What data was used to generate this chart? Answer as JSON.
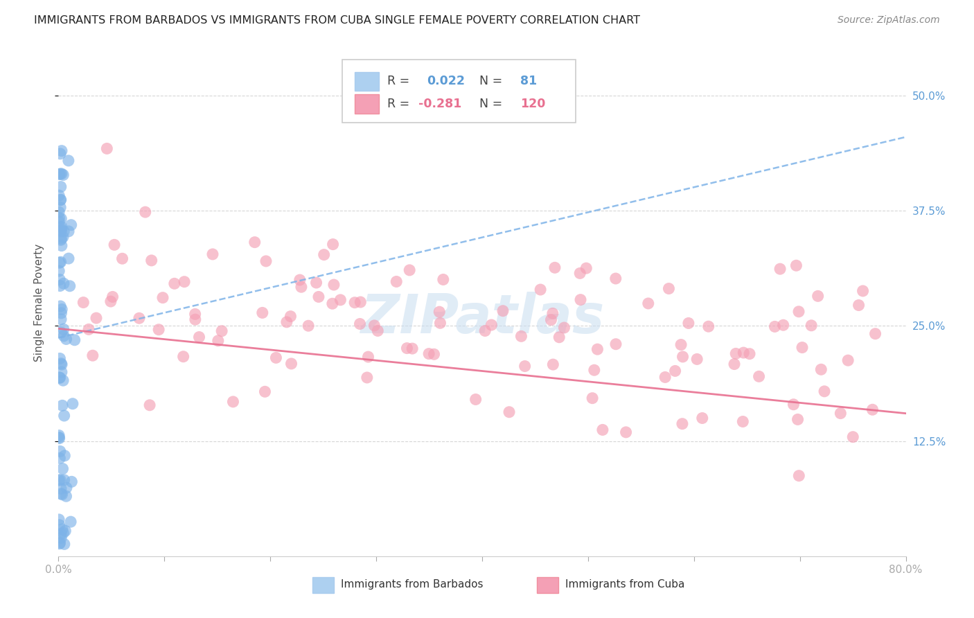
{
  "title": "IMMIGRANTS FROM BARBADOS VS IMMIGRANTS FROM CUBA SINGLE FEMALE POVERTY CORRELATION CHART",
  "source": "Source: ZipAtlas.com",
  "ylabel": "Single Female Poverty",
  "xlim": [
    0.0,
    0.8
  ],
  "ylim": [
    0.0,
    0.55
  ],
  "xtick_positions": [
    0.0,
    0.1,
    0.2,
    0.3,
    0.4,
    0.5,
    0.6,
    0.7,
    0.8
  ],
  "xticklabels": [
    "0.0%",
    "",
    "",
    "",
    "",
    "",
    "",
    "",
    "80.0%"
  ],
  "ytick_values": [
    0.5,
    0.375,
    0.25,
    0.125
  ],
  "ytick_labels": [
    "50.0%",
    "37.5%",
    "25.0%",
    "12.5%"
  ],
  "barbados_R": 0.022,
  "barbados_N": 81,
  "cuba_R": -0.281,
  "cuba_N": 120,
  "barbados_color": "#7EB3E8",
  "cuba_color": "#F4A0B5",
  "barbados_line_color": "#7EB3E8",
  "cuba_line_color": "#E87090",
  "legend_barbados_fill": "#ADD0F0",
  "legend_cuba_fill": "#F4A0B5",
  "watermark_text": "ZIPatlas",
  "background_color": "#ffffff",
  "grid_color": "#cccccc",
  "barbados_line_start_y": 0.237,
  "barbados_line_end_y": 0.455,
  "cuba_line_start_y": 0.247,
  "cuba_line_end_y": 0.155,
  "cuba_line_start_x": 0.0,
  "cuba_line_end_x": 0.8
}
